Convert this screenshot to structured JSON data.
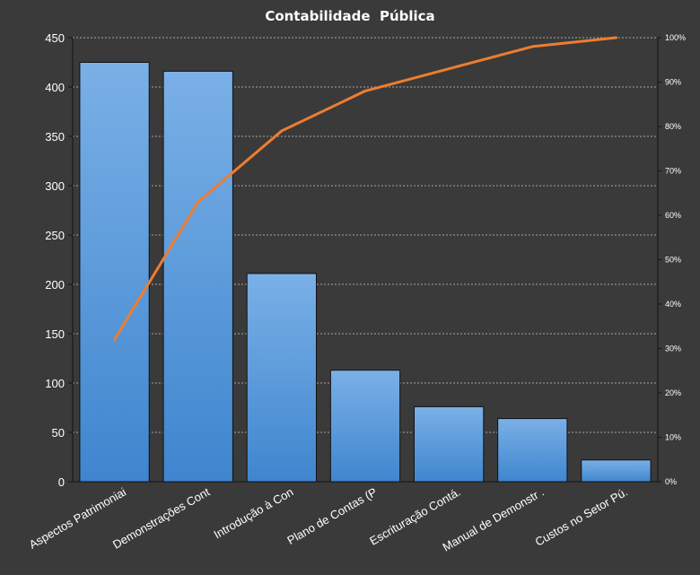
{
  "chart_data": {
    "type": "bar",
    "title": "Contabilidade  Pública",
    "categories": [
      "Aspectos Patrimoniai",
      "Demonstrações Cont",
      "Introdução à Con",
      "Plano de Contas (P",
      "Escrituração Contá.",
      "Manual de Demonstr .",
      "Custos no Setor Pú."
    ],
    "series": [
      {
        "type": "bar",
        "axis": "left",
        "values": [
          425,
          416,
          211,
          113,
          76,
          64,
          22
        ]
      },
      {
        "type": "line",
        "axis": "right",
        "values": [
          32,
          63,
          79,
          88,
          93,
          98,
          100
        ]
      }
    ],
    "y_left": {
      "min": 0,
      "max": 450,
      "ticks": [
        "0",
        "50",
        "100",
        "150",
        "200",
        "250",
        "300",
        "350",
        "400",
        "450"
      ]
    },
    "y_right": {
      "min": 0,
      "max": 100,
      "ticks": [
        "0%",
        "10%",
        "20%",
        "30%",
        "40%",
        "50%",
        "60%",
        "70%",
        "80%",
        "90%",
        "100%"
      ]
    },
    "grid": true,
    "legend": "none",
    "colors": {
      "background": "#3a3a3a",
      "bar": "#4a8fd6",
      "bar_light": "#7ab0e6",
      "line": "#ed7d31",
      "grid": "#bfbfbf",
      "text": "#ffffff"
    }
  }
}
